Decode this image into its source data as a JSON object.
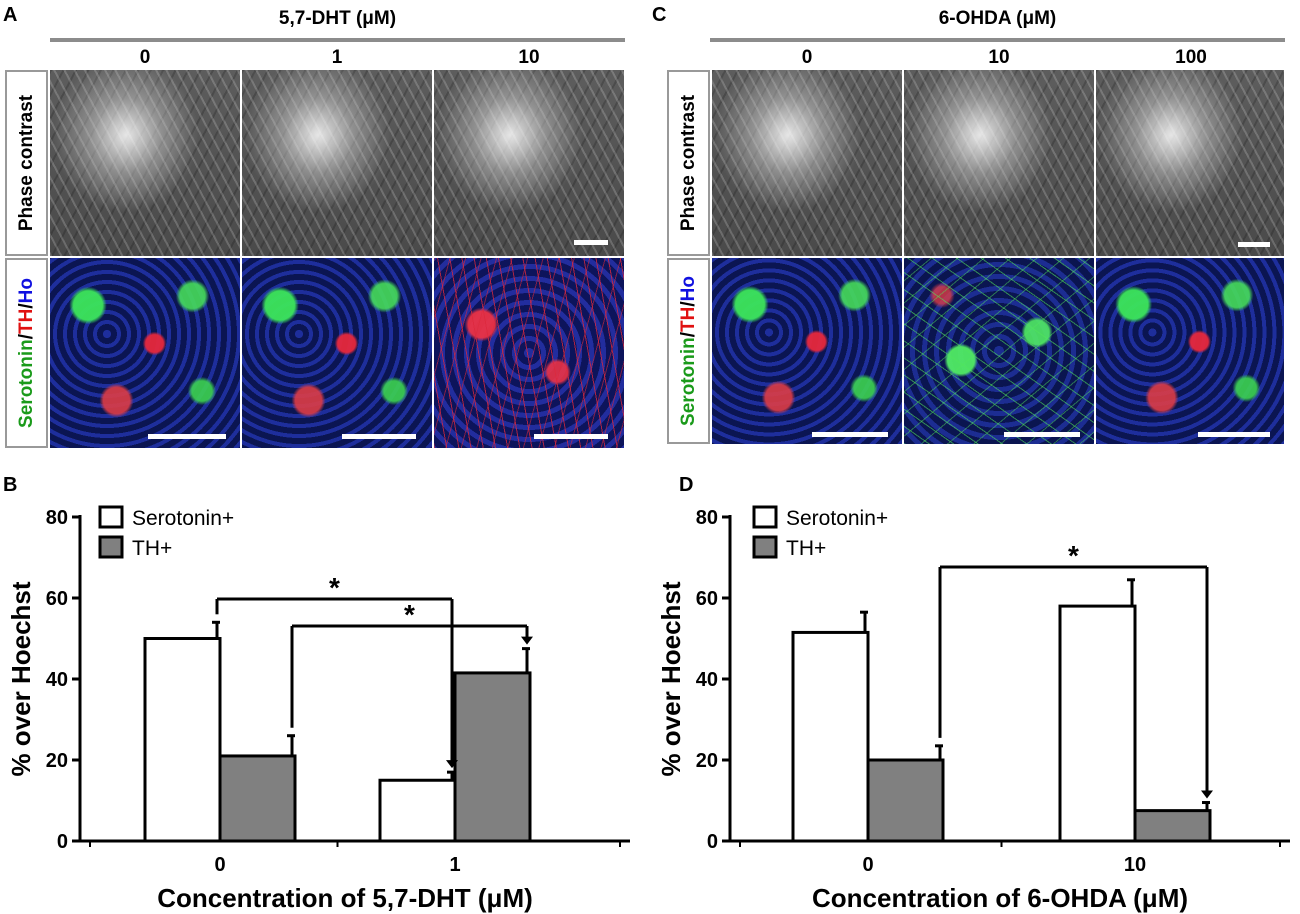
{
  "panels": {
    "A": {
      "letter": "A",
      "treatment": "5,7-DHT (μM)",
      "columns": [
        "0",
        "1",
        "10"
      ],
      "row_labels": {
        "phase": "Phase contrast",
        "fluo_green": "Serotonin",
        "fluo_sep1": "/",
        "fluo_red": "TH",
        "fluo_sep2": "/",
        "fluo_blue": "Ho"
      }
    },
    "C": {
      "letter": "C",
      "treatment": "6-OHDA (μM)",
      "columns": [
        "0",
        "10",
        "100"
      ],
      "row_labels": {
        "phase": "Phase contrast",
        "fluo_green": "Serotonin",
        "fluo_sep1": "/",
        "fluo_red": "TH",
        "fluo_sep2": "/",
        "fluo_blue": "Ho"
      }
    },
    "B": {
      "letter": "B"
    },
    "D": {
      "letter": "D"
    }
  },
  "colors": {
    "serotonin_bar": "#ffffff",
    "th_bar": "#808080",
    "serotonin_text": "#1a9a1a",
    "th_text": "#e01010",
    "ho_text": "#1010e0",
    "divider": "#8c8c8c"
  },
  "chart_data": [
    {
      "panel": "B",
      "type": "bar",
      "categories": [
        "0",
        "1"
      ],
      "series": [
        {
          "name": "Serotonin+",
          "values": [
            50,
            15
          ],
          "errors": [
            4,
            2
          ]
        },
        {
          "name": "TH+",
          "values": [
            21,
            41.5
          ],
          "errors": [
            5,
            6
          ]
        }
      ],
      "xlabel": "Concentration of 5,7-DHT (μM)",
      "ylabel": "% over Hoechst",
      "ylim": [
        0,
        80
      ],
      "yticks": [
        0,
        20,
        40,
        60,
        80
      ],
      "legend": "top-left",
      "significance": [
        {
          "from": "0 Serotonin+",
          "to": "1 Serotonin+",
          "label": "*"
        },
        {
          "from": "0 TH+",
          "to": "1 TH+",
          "label": "*"
        }
      ]
    },
    {
      "panel": "D",
      "type": "bar",
      "categories": [
        "0",
        "10"
      ],
      "series": [
        {
          "name": "Serotonin+",
          "values": [
            51.5,
            58
          ],
          "errors": [
            5,
            6.5
          ]
        },
        {
          "name": "TH+",
          "values": [
            20,
            7.5
          ],
          "errors": [
            3.5,
            2
          ]
        }
      ],
      "xlabel": "Concentration of 6-OHDA (μM)",
      "ylabel": "% over Hoechst",
      "ylim": [
        0,
        80
      ],
      "yticks": [
        0,
        20,
        40,
        60,
        80
      ],
      "legend": "top-left",
      "significance": [
        {
          "from": "0 TH+",
          "to": "10 TH+",
          "label": "*"
        }
      ]
    }
  ]
}
